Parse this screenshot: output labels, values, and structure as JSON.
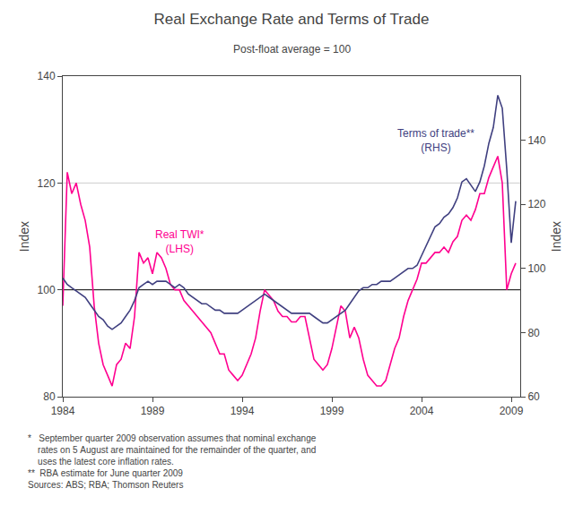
{
  "chart_data": {
    "type": "line",
    "title": "Real Exchange Rate and Terms of Trade",
    "subtitle": "Post-float average = 100",
    "ylabel": "Index",
    "y2label": "Index",
    "xlim": [
      1984.0,
      2009.5
    ],
    "xticks": [
      1984,
      1989,
      1994,
      1999,
      2004,
      2009
    ],
    "ylim": [
      80,
      140
    ],
    "yticks": [
      80,
      100,
      120,
      140
    ],
    "y2lim": [
      60,
      160
    ],
    "y2ticks": [
      60,
      80,
      100,
      120,
      140
    ],
    "grid": false,
    "x": [
      1984.0,
      1984.25,
      1984.5,
      1984.75,
      1985.0,
      1985.25,
      1985.5,
      1985.75,
      1986.0,
      1986.25,
      1986.5,
      1986.75,
      1987.0,
      1987.25,
      1987.5,
      1987.75,
      1988.0,
      1988.25,
      1988.5,
      1988.75,
      1989.0,
      1989.25,
      1989.5,
      1989.75,
      1990.0,
      1990.25,
      1990.5,
      1990.75,
      1991.0,
      1991.25,
      1991.5,
      1991.75,
      1992.0,
      1992.25,
      1992.5,
      1992.75,
      1993.0,
      1993.25,
      1993.5,
      1993.75,
      1994.0,
      1994.25,
      1994.5,
      1994.75,
      1995.0,
      1995.25,
      1995.5,
      1995.75,
      1996.0,
      1996.25,
      1996.5,
      1996.75,
      1997.0,
      1997.25,
      1997.5,
      1997.75,
      1998.0,
      1998.25,
      1998.5,
      1998.75,
      1999.0,
      1999.25,
      1999.5,
      1999.75,
      2000.0,
      2000.25,
      2000.5,
      2000.75,
      2001.0,
      2001.25,
      2001.5,
      2001.75,
      2002.0,
      2002.25,
      2002.5,
      2002.75,
      2003.0,
      2003.25,
      2003.5,
      2003.75,
      2004.0,
      2004.25,
      2004.5,
      2004.75,
      2005.0,
      2005.25,
      2005.5,
      2005.75,
      2006.0,
      2006.25,
      2006.5,
      2006.75,
      2007.0,
      2007.25,
      2007.5,
      2007.75,
      2008.0,
      2008.25,
      2008.5,
      2008.75,
      2009.0,
      2009.25
    ],
    "series": [
      {
        "color": "#FF0090",
        "axis": "y",
        "values": [
          97.0,
          122.0,
          118.0,
          120.0,
          116.0,
          113.0,
          108.0,
          97.0,
          90.0,
          86.0,
          84.0,
          82.0,
          86.0,
          87.0,
          90.0,
          89.0,
          95.0,
          107.0,
          105.0,
          106.0,
          103.0,
          107.0,
          106.0,
          104.0,
          101.0,
          100.0,
          100.0,
          98.0,
          97.0,
          96.0,
          95.0,
          94.0,
          93.0,
          92.0,
          90.0,
          88.0,
          88.0,
          85.0,
          84.0,
          83.0,
          84.0,
          86.0,
          88.0,
          91.0,
          96.0,
          100.0,
          99.0,
          98.0,
          96.0,
          95.0,
          95.0,
          94.0,
          94.0,
          95.0,
          95.0,
          91.0,
          87.0,
          86.0,
          85.0,
          86.0,
          89.0,
          93.0,
          97.0,
          96.0,
          91.0,
          93.0,
          91.0,
          87.0,
          84.0,
          83.0,
          82.0,
          82.0,
          83.0,
          86.0,
          89.0,
          91.0,
          95.0,
          98.0,
          100.0,
          102.0,
          105.0,
          105.0,
          106.0,
          107.0,
          107.0,
          108.0,
          107.0,
          109.0,
          110.0,
          113.0,
          114.0,
          113.0,
          115.0,
          118.0,
          118.0,
          121.0,
          123.0,
          125.0,
          120.0,
          100.0,
          103.0,
          105.0
        ]
      },
      {
        "color": "#404080",
        "axis": "y2",
        "values": [
          97.0,
          95.0,
          94.0,
          93.0,
          92.0,
          91.0,
          89.0,
          87.0,
          85.0,
          84.0,
          82.0,
          81.0,
          82.0,
          83.0,
          85.0,
          87.0,
          90.0,
          94.0,
          95.0,
          96.0,
          95.0,
          96.0,
          96.0,
          96.0,
          95.0,
          94.0,
          95.0,
          94.0,
          92.0,
          91.0,
          90.0,
          89.0,
          89.0,
          88.0,
          87.0,
          87.0,
          86.0,
          86.0,
          86.0,
          86.0,
          87.0,
          88.0,
          89.0,
          90.0,
          91.0,
          92.0,
          91.0,
          90.0,
          89.0,
          88.0,
          87.0,
          86.0,
          86.0,
          86.0,
          86.0,
          86.0,
          85.0,
          84.0,
          83.0,
          83.0,
          84.0,
          85.0,
          86.0,
          87.0,
          89.0,
          91.0,
          93.0,
          94.0,
          94.0,
          95.0,
          95.0,
          96.0,
          96.0,
          96.0,
          97.0,
          98.0,
          99.0,
          100.0,
          100.0,
          101.0,
          104.0,
          107.0,
          110.0,
          113.0,
          114.0,
          116.0,
          117.0,
          119.0,
          122.0,
          127.0,
          128.0,
          126.0,
          124.0,
          127.0,
          132.0,
          139.0,
          144.0,
          154.0,
          150.0,
          131.0,
          108.0,
          121.0
        ]
      }
    ],
    "hlines": [
      {
        "y": 100,
        "color": "#000000"
      },
      {
        "y": 120,
        "color": "#cccccc"
      }
    ],
    "annotations": [
      {
        "text": "Real TWI*\n(LHS)",
        "x": 1990.5,
        "y": 109,
        "color": "#FF0090"
      },
      {
        "text": "Terms of trade**\n(RHS)",
        "x": 2004.8,
        "y": 128,
        "color": "#404080"
      }
    ],
    "footnotes": [
      "*   September quarter 2009 observation assumes that nominal exchange\n    rates on 5 August are maintained for the remainder of the quarter, and\n    uses the latest core inflation rates.",
      "**  RBA estimate for June quarter 2009",
      "Sources: ABS; RBA; Thomson Reuters"
    ]
  }
}
